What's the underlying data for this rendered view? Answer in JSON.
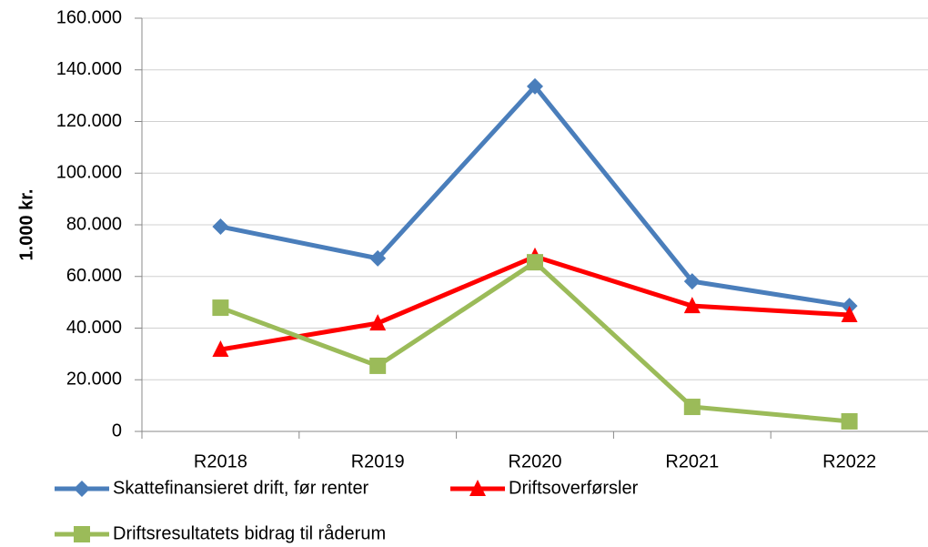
{
  "chart_data": {
    "type": "line",
    "ylabel": "1.000 kr.",
    "categories": [
      "R2018",
      "R2019",
      "R2020",
      "R2021",
      "R2022"
    ],
    "series": [
      {
        "name": "Skattefinansieret drift, før renter",
        "color": "#4a7ebb",
        "marker": "diamond",
        "values": [
          79300,
          67000,
          133600,
          58100,
          48600
        ]
      },
      {
        "name": "Driftsoverførsler",
        "color": "#ff0000",
        "marker": "triangle",
        "values": [
          31700,
          41900,
          67700,
          48600,
          45100
        ]
      },
      {
        "name": "Driftsresultatets bidrag til råderum",
        "color": "#9bbb59",
        "marker": "square",
        "values": [
          47900,
          25400,
          65500,
          9500,
          3900
        ]
      }
    ],
    "ylim": [
      0,
      160000
    ],
    "yticks": [
      0,
      {
        "value": 20000,
        "label": "20.000"
      },
      {
        "value": 40000,
        "label": "40.000"
      },
      {
        "value": 60000,
        "label": "60.000"
      },
      {
        "value": 80000,
        "label": "80.000"
      },
      {
        "value": 100000,
        "label": "100.000"
      },
      {
        "value": 120000,
        "label": "120.000"
      },
      {
        "value": 140000,
        "label": "140.000"
      },
      {
        "value": 160000,
        "label": "160.000"
      }
    ],
    "grid": true,
    "legend": "bottom"
  }
}
